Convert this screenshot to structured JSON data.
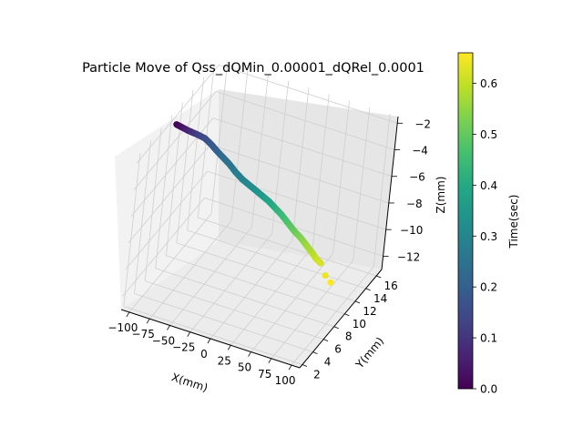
{
  "chart_data": {
    "type": "scatter",
    "projection": "3d",
    "title": "Particle Move of  Qss_dQMin_0.00001_dQRel_0.0001",
    "xlabel": "X(mm)",
    "ylabel": "Y(mm)",
    "zlabel": "Z(mm)",
    "xlim": [
      -110,
      110
    ],
    "ylim": [
      1.5,
      17
    ],
    "zlim": [
      -13,
      -1.5
    ],
    "xticks": [
      -100,
      -75,
      -50,
      -25,
      0,
      25,
      50,
      75,
      100
    ],
    "xtick_labels": [
      "−100",
      "−75",
      "−50",
      "−25",
      "0",
      "25",
      "50",
      "75",
      "100"
    ],
    "yticks": [
      2,
      4,
      6,
      8,
      10,
      12,
      14,
      16
    ],
    "ytick_labels": [
      "2",
      "4",
      "6",
      "8",
      "10",
      "12",
      "14",
      "16"
    ],
    "zticks": [
      -2,
      -4,
      -6,
      -8,
      -10,
      -12
    ],
    "ztick_labels": [
      "−2",
      "−4",
      "−6",
      "−8",
      "−10",
      "−12"
    ],
    "grid": true,
    "colormap": "viridis",
    "colorbar": {
      "label": "Time(sec)",
      "range": [
        0.0,
        0.66
      ],
      "ticks": [
        0.0,
        0.1,
        0.2,
        0.3,
        0.4,
        0.5,
        0.6
      ],
      "tick_labels": [
        "0.0",
        "0.1",
        "0.2",
        "0.3",
        "0.4",
        "0.5",
        "0.6"
      ]
    },
    "series": [
      {
        "color_by": "time",
        "x": [
          -100,
          -94,
          -88,
          -82,
          -76,
          -69,
          -62,
          -55,
          -47,
          -39,
          -31,
          -23,
          -15,
          -7,
          1,
          9,
          17,
          25,
          33,
          41,
          49,
          57,
          63,
          68,
          74,
          80,
          86
        ],
        "y": [
          7.4,
          7.6,
          7.8,
          7.9,
          8.0,
          8.2,
          8.4,
          8.5,
          8.6,
          8.7,
          8.8,
          8.9,
          9.0,
          9.1,
          9.2,
          9.3,
          9.4,
          9.5,
          9.6,
          9.7,
          9.8,
          9.9,
          10.0,
          10.1,
          10.2,
          10.4,
          10.6
        ],
        "z": [
          -1.7,
          -1.9,
          -2.1,
          -2.2,
          -2.3,
          -2.5,
          -2.9,
          -3.3,
          -3.7,
          -4.1,
          -4.6,
          -5.0,
          -5.3,
          -5.6,
          -5.9,
          -6.2,
          -6.6,
          -7.0,
          -7.5,
          -8.0,
          -8.4,
          -8.9,
          -9.3,
          -9.7,
          -10.0,
          -10.9,
          -11.4
        ],
        "time": [
          0.0,
          0.03,
          0.06,
          0.09,
          0.12,
          0.15,
          0.18,
          0.2,
          0.23,
          0.25,
          0.27,
          0.29,
          0.31,
          0.33,
          0.35,
          0.38,
          0.41,
          0.44,
          0.47,
          0.5,
          0.53,
          0.56,
          0.58,
          0.6,
          0.62,
          0.64,
          0.66
        ]
      }
    ]
  }
}
